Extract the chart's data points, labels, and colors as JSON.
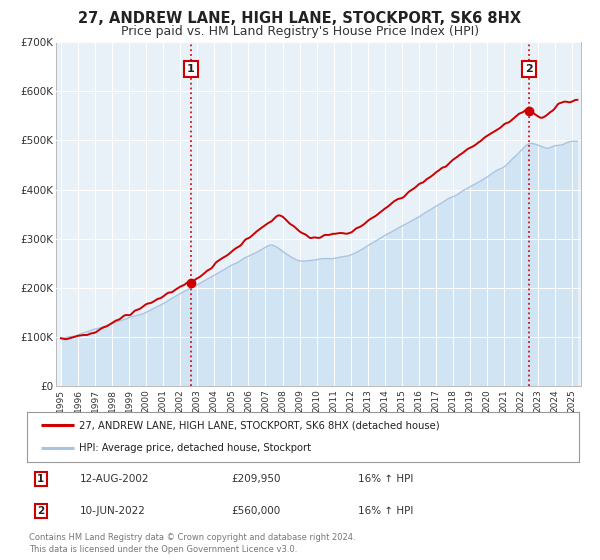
{
  "title": "27, ANDREW LANE, HIGH LANE, STOCKPORT, SK6 8HX",
  "subtitle": "Price paid vs. HM Land Registry's House Price Index (HPI)",
  "ylim": [
    0,
    700000
  ],
  "xlim_start": 1994.7,
  "xlim_end": 2025.5,
  "hpi_color": "#aac4e0",
  "hpi_fill_color": "#d0e4f4",
  "price_color": "#cc0000",
  "vline_color": "#cc0000",
  "background_color": "#ffffff",
  "plot_bg_color": "#e8f0f8",
  "legend_label_price": "27, ANDREW LANE, HIGH LANE, STOCKPORT, SK6 8HX (detached house)",
  "legend_label_hpi": "HPI: Average price, detached house, Stockport",
  "sale1_date": "12-AUG-2002",
  "sale1_price": "£209,950",
  "sale1_hpi": "16% ↑ HPI",
  "sale1_year": 2002.62,
  "sale1_value": 209950,
  "sale2_date": "10-JUN-2022",
  "sale2_price": "£560,000",
  "sale2_hpi": "16% ↑ HPI",
  "sale2_year": 2022.45,
  "sale2_value": 560000,
  "footnote": "Contains HM Land Registry data © Crown copyright and database right 2024.\nThis data is licensed under the Open Government Licence v3.0.",
  "yticks": [
    0,
    100000,
    200000,
    300000,
    400000,
    500000,
    600000,
    700000
  ],
  "ytick_labels": [
    "£0",
    "£100K",
    "£200K",
    "£300K",
    "£400K",
    "£500K",
    "£600K",
    "£700K"
  ],
  "title_fontsize": 10.5,
  "subtitle_fontsize": 9
}
